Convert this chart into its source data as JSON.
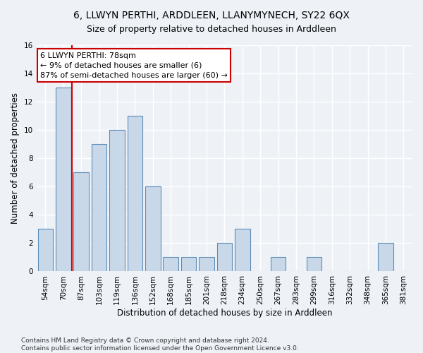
{
  "title": "6, LLWYN PERTHI, ARDDLEEN, LLANYMYNECH, SY22 6QX",
  "subtitle": "Size of property relative to detached houses in Arddleen",
  "xlabel": "Distribution of detached houses by size in Arddleen",
  "ylabel": "Number of detached properties",
  "categories": [
    "54sqm",
    "70sqm",
    "87sqm",
    "103sqm",
    "119sqm",
    "136sqm",
    "152sqm",
    "168sqm",
    "185sqm",
    "201sqm",
    "218sqm",
    "234sqm",
    "250sqm",
    "267sqm",
    "283sqm",
    "299sqm",
    "316sqm",
    "332sqm",
    "348sqm",
    "365sqm",
    "381sqm"
  ],
  "values": [
    3,
    13,
    7,
    9,
    10,
    11,
    6,
    1,
    1,
    1,
    2,
    3,
    0,
    1,
    0,
    1,
    0,
    0,
    0,
    2,
    0
  ],
  "bar_color": "#c8d8e8",
  "bar_edge_color": "#5b8db8",
  "red_line_x": 1.5,
  "annotation_text": "6 LLWYN PERTHI: 78sqm\n← 9% of detached houses are smaller (6)\n87% of semi-detached houses are larger (60) →",
  "annotation_box_color": "#ffffff",
  "annotation_box_edge_color": "#cc0000",
  "red_line_color": "#cc0000",
  "ylim": [
    0,
    16
  ],
  "yticks": [
    0,
    2,
    4,
    6,
    8,
    10,
    12,
    14,
    16
  ],
  "footer": "Contains HM Land Registry data © Crown copyright and database right 2024.\nContains public sector information licensed under the Open Government Licence v3.0.",
  "background_color": "#eef2f7",
  "grid_color": "#ffffff",
  "title_fontsize": 10,
  "subtitle_fontsize": 9,
  "xlabel_fontsize": 8.5,
  "ylabel_fontsize": 8.5,
  "tick_fontsize": 7.5,
  "annotation_fontsize": 8,
  "footer_fontsize": 6.5
}
